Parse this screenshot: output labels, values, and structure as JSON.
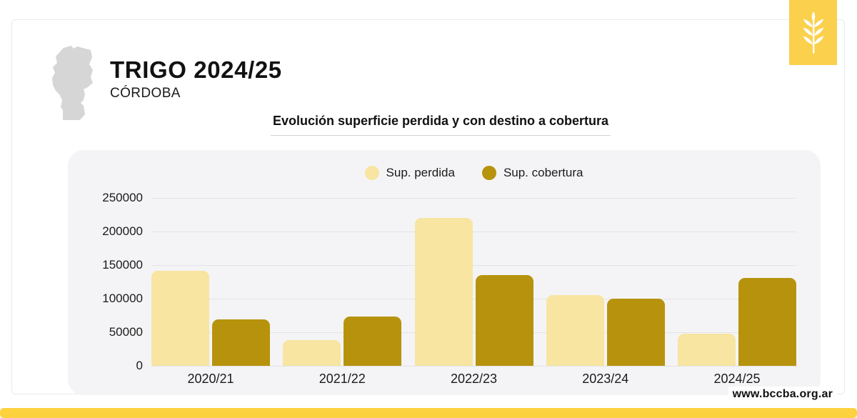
{
  "header": {
    "title": "TRIGO 2024/25",
    "subtitle": "CÓRDOBA"
  },
  "chart": {
    "title": "Evolución superficie perdida y con destino a cobertura"
  },
  "footer": {
    "url": "www.bccba.org.ar"
  },
  "icons": {
    "wheat": "wheat-spike-icon",
    "map": "cordoba-province-silhouette"
  },
  "colors": {
    "accent_yellow": "#FBD04C",
    "bottom_bar_yellow": "#FDD23F",
    "panel_bg": "#F4F4F6",
    "gridline": "#E3E3E8",
    "map_gray": "#D6D6D6",
    "text_dark": "#1b1b1b",
    "bar_light": "#F7E5A1",
    "bar_dark": "#B7930D"
  },
  "chart_data": {
    "type": "bar",
    "title": "Evolución superficie perdida y con destino a cobertura",
    "categories": [
      "2020/21",
      "2021/22",
      "2022/23",
      "2023/24",
      "2024/25"
    ],
    "series": [
      {
        "name": "Sup. perdida",
        "color": "#F7E5A1",
        "values": [
          142000,
          38000,
          220000,
          105000,
          48000
        ]
      },
      {
        "name": "Sup. cobertura",
        "color": "#B7930D",
        "values": [
          69000,
          73000,
          135000,
          100000,
          131000
        ]
      }
    ],
    "ylim": [
      0,
      250000
    ],
    "yticks": [
      0,
      50000,
      100000,
      150000,
      200000,
      250000
    ],
    "grid": true,
    "legend_position": "top"
  }
}
